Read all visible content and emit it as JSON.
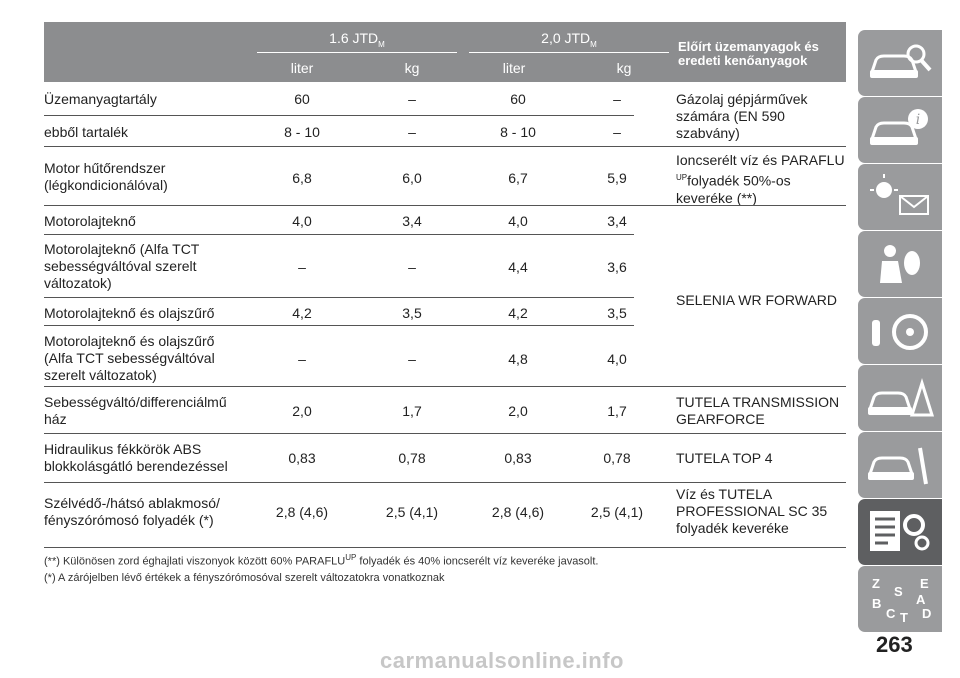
{
  "header": {
    "engine1": "1.6 JTD",
    "engine2": "2,0 JTD",
    "subscript": "M",
    "liter": "liter",
    "kg": "kg",
    "fuel_title": "Előírt üzemanyagok és eredeti kenőanyagok"
  },
  "rows": [
    {
      "name": "Üzemanyagtartály",
      "v1": "60",
      "v2": "–",
      "v3": "60",
      "v4": "–"
    },
    {
      "name": "ebből tartalék",
      "v1": "8 - 10",
      "v2": "–",
      "v3": "8 - 10",
      "v4": "–"
    },
    {
      "name": "Motor hűtőrendszer (légkondicionálóval)",
      "v1": "6,8",
      "v2": "6,0",
      "v3": "6,7",
      "v4": "5,9"
    },
    {
      "name": "Motorolajteknő",
      "v1": "4,0",
      "v2": "3,4",
      "v3": "4,0",
      "v4": "3,4"
    },
    {
      "name": "Motorolajteknő (Alfa TCT sebességváltóval szerelt változatok)",
      "v1": "–",
      "v2": "–",
      "v3": "4,4",
      "v4": "3,6"
    },
    {
      "name": "Motorolajteknő és olajszűrő",
      "v1": "4,2",
      "v2": "3,5",
      "v3": "4,2",
      "v4": "3,5"
    },
    {
      "name": "Motorolajteknő és olajszűrő (Alfa TCT sebességváltóval szerelt változatok)",
      "v1": "–",
      "v2": "–",
      "v3": "4,8",
      "v4": "4,0"
    },
    {
      "name": "Sebességváltó/differenciálmű ház",
      "v1": "2,0",
      "v2": "1,7",
      "v3": "2,0",
      "v4": "1,7"
    },
    {
      "name": "Hidraulikus fékkörök ABS blokkolásgátló berendezéssel",
      "v1": "0,83",
      "v2": "0,78",
      "v3": "0,83",
      "v4": "0,78"
    },
    {
      "name": "Szélvédő-/hátsó ablakmosó/ fényszórómosó folyadék (*)",
      "v1": "2,8 (4,6)",
      "v2": "2,5 (4,1)",
      "v3": "2,8 (4,6)",
      "v4": "2,5 (4,1)"
    }
  ],
  "fuels": {
    "diesel": "Gázolaj gépjárművek számára (EN 590 szabvány)",
    "coolant_a": "Ioncserélt víz és PARAFLU",
    "coolant_sup": "UP",
    "coolant_b": "folyadék 50%-os keveréke (**)",
    "oil": "SELENIA WR FORWARD",
    "trans": "TUTELA TRANSMISSION GEARFORCE",
    "brake": "TUTELA TOP 4",
    "washer": "Víz és TUTELA PROFESSIONAL SC 35 folyadék keveréke"
  },
  "footnotes": {
    "n1a": "(**) Különösen zord éghajlati viszonyok között 60% PARAFLU",
    "n1sup": "UP",
    "n1b": "folyadék és 40% ioncserélt víz keveréke javasolt.",
    "n2": "(*) A zárójelben lévő értékek a fényszórómosóval szerelt változatokra vonatkoznak"
  },
  "page_number": "263",
  "watermark": "carmanualsonline.info",
  "tab_letters": [
    "Z",
    "E",
    "S",
    "A",
    "B",
    "C",
    "T",
    "D"
  ],
  "colors": {
    "header_bg": "#8c8d8f",
    "tab": "#9a9b9d",
    "tab_active": "#5e5f61"
  }
}
